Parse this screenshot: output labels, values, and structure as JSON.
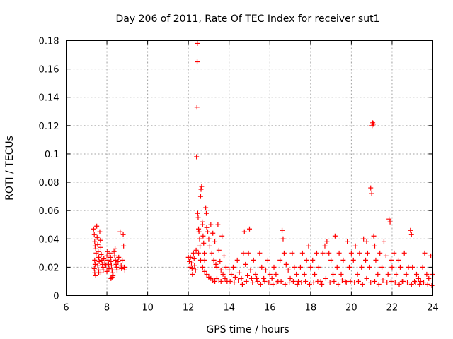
{
  "chart_data": {
    "type": "scatter",
    "title": "Day 206 of 2011, Rate Of TEC Index for receiver sut1",
    "xlabel": "GPS time / hours",
    "ylabel": "ROTI / TECUs",
    "xlim": [
      6,
      24
    ],
    "ylim": [
      0,
      0.18
    ],
    "xticks": [
      6,
      8,
      10,
      12,
      14,
      16,
      18,
      20,
      22,
      24
    ],
    "yticks": [
      0,
      0.02,
      0.04,
      0.06,
      0.08,
      0.1,
      0.12,
      0.14,
      0.16,
      0.18
    ],
    "xtick_labels": [
      "6",
      "8",
      "10",
      "12",
      "14",
      "16",
      "18",
      "20",
      "22",
      "24"
    ],
    "ytick_labels": [
      "0",
      "0.02",
      "0.04",
      "0.06",
      "0.08",
      "0.1",
      "0.12",
      "0.14",
      "0.16",
      "0.18"
    ],
    "grid": true,
    "marker": "+",
    "color": "#ff0000",
    "series": [
      {
        "name": "sut1",
        "points": [
          [
            7.35,
            0.047
          ],
          [
            7.38,
            0.043
          ],
          [
            7.4,
            0.038
          ],
          [
            7.42,
            0.035
          ],
          [
            7.45,
            0.033
          ],
          [
            7.47,
            0.03
          ],
          [
            7.4,
            0.025
          ],
          [
            7.42,
            0.022
          ],
          [
            7.38,
            0.019
          ],
          [
            7.4,
            0.016
          ],
          [
            7.45,
            0.014
          ],
          [
            7.5,
            0.049
          ],
          [
            7.52,
            0.041
          ],
          [
            7.55,
            0.036
          ],
          [
            7.57,
            0.031
          ],
          [
            7.6,
            0.027
          ],
          [
            7.62,
            0.024
          ],
          [
            7.55,
            0.021
          ],
          [
            7.58,
            0.018
          ],
          [
            7.6,
            0.016
          ],
          [
            7.65,
            0.045
          ],
          [
            7.68,
            0.039
          ],
          [
            7.7,
            0.034
          ],
          [
            7.72,
            0.029
          ],
          [
            7.75,
            0.025
          ],
          [
            7.78,
            0.022
          ],
          [
            7.8,
            0.02
          ],
          [
            7.82,
            0.018
          ],
          [
            7.7,
            0.016
          ],
          [
            7.85,
            0.026
          ],
          [
            7.9,
            0.023
          ],
          [
            7.95,
            0.021
          ],
          [
            8.0,
            0.028
          ],
          [
            8.03,
            0.031
          ],
          [
            8.05,
            0.025
          ],
          [
            8.08,
            0.022
          ],
          [
            8.1,
            0.019
          ],
          [
            8.0,
            0.017
          ],
          [
            8.15,
            0.03
          ],
          [
            8.18,
            0.027
          ],
          [
            8.2,
            0.024
          ],
          [
            8.22,
            0.021
          ],
          [
            8.25,
            0.018
          ],
          [
            8.28,
            0.016
          ],
          [
            8.3,
            0.014
          ],
          [
            8.2,
            0.012
          ],
          [
            8.25,
            0.013
          ],
          [
            8.35,
            0.031
          ],
          [
            8.38,
            0.028
          ],
          [
            8.4,
            0.033
          ],
          [
            8.42,
            0.025
          ],
          [
            8.45,
            0.022
          ],
          [
            8.48,
            0.02
          ],
          [
            8.5,
            0.018
          ],
          [
            8.55,
            0.024
          ],
          [
            8.58,
            0.027
          ],
          [
            8.65,
            0.045
          ],
          [
            8.7,
            0.021
          ],
          [
            8.72,
            0.019
          ],
          [
            8.75,
            0.025
          ],
          [
            8.8,
            0.043
          ],
          [
            8.82,
            0.035
          ],
          [
            8.85,
            0.02
          ],
          [
            8.88,
            0.018
          ],
          [
            12.0,
            0.027
          ],
          [
            12.05,
            0.024
          ],
          [
            12.08,
            0.02
          ],
          [
            12.1,
            0.027
          ],
          [
            12.15,
            0.023
          ],
          [
            12.18,
            0.019
          ],
          [
            12.2,
            0.015
          ],
          [
            12.25,
            0.03
          ],
          [
            12.28,
            0.026
          ],
          [
            12.3,
            0.021
          ],
          [
            12.35,
            0.018
          ],
          [
            12.38,
            0.032
          ],
          [
            12.4,
            0.098
          ],
          [
            12.42,
            0.133
          ],
          [
            12.43,
            0.165
          ],
          [
            12.44,
            0.178
          ],
          [
            12.46,
            0.058
          ],
          [
            12.48,
            0.055
          ],
          [
            12.5,
            0.047
          ],
          [
            12.52,
            0.045
          ],
          [
            12.55,
            0.04
          ],
          [
            12.57,
            0.035
          ],
          [
            12.6,
            0.07
          ],
          [
            12.62,
            0.075
          ],
          [
            12.65,
            0.077
          ],
          [
            12.68,
            0.052
          ],
          [
            12.7,
            0.05
          ],
          [
            12.72,
            0.042
          ],
          [
            12.75,
            0.037
          ],
          [
            12.78,
            0.03
          ],
          [
            12.8,
            0.025
          ],
          [
            12.85,
            0.062
          ],
          [
            12.88,
            0.058
          ],
          [
            12.9,
            0.048
          ],
          [
            12.95,
            0.045
          ],
          [
            13.0,
            0.04
          ],
          [
            13.05,
            0.035
          ],
          [
            13.1,
            0.05
          ],
          [
            13.15,
            0.03
          ],
          [
            13.2,
            0.044
          ],
          [
            13.25,
            0.025
          ],
          [
            13.3,
            0.038
          ],
          [
            13.35,
            0.022
          ],
          [
            13.4,
            0.02
          ],
          [
            13.45,
            0.05
          ],
          [
            13.5,
            0.032
          ],
          [
            13.55,
            0.024
          ],
          [
            13.6,
            0.018
          ],
          [
            13.65,
            0.042
          ],
          [
            13.7,
            0.015
          ],
          [
            13.75,
            0.028
          ],
          [
            13.8,
            0.012
          ],
          [
            13.85,
            0.02
          ],
          [
            13.9,
            0.01
          ],
          [
            12.5,
            0.03
          ],
          [
            12.6,
            0.025
          ],
          [
            12.7,
            0.02
          ],
          [
            12.8,
            0.017
          ],
          [
            12.9,
            0.015
          ],
          [
            13.0,
            0.013
          ],
          [
            13.1,
            0.012
          ],
          [
            13.2,
            0.011
          ],
          [
            13.3,
            0.01
          ],
          [
            13.4,
            0.012
          ],
          [
            13.5,
            0.011
          ],
          [
            13.6,
            0.01
          ],
          [
            14.0,
            0.018
          ],
          [
            14.1,
            0.015
          ],
          [
            14.2,
            0.02
          ],
          [
            14.3,
            0.013
          ],
          [
            14.4,
            0.025
          ],
          [
            14.5,
            0.016
          ],
          [
            14.6,
            0.012
          ],
          [
            14.7,
            0.03
          ],
          [
            14.75,
            0.045
          ],
          [
            14.8,
            0.022
          ],
          [
            14.9,
            0.014
          ],
          [
            14.95,
            0.03
          ],
          [
            15.0,
            0.047
          ],
          [
            15.05,
            0.018
          ],
          [
            15.1,
            0.012
          ],
          [
            15.2,
            0.025
          ],
          [
            15.3,
            0.015
          ],
          [
            15.4,
            0.01
          ],
          [
            15.5,
            0.03
          ],
          [
            15.6,
            0.02
          ],
          [
            15.7,
            0.012
          ],
          [
            15.8,
            0.018
          ],
          [
            15.9,
            0.025
          ],
          [
            16.0,
            0.015
          ],
          [
            14.05,
            0.01
          ],
          [
            14.25,
            0.009
          ],
          [
            14.45,
            0.011
          ],
          [
            14.65,
            0.008
          ],
          [
            14.85,
            0.01
          ],
          [
            15.15,
            0.009
          ],
          [
            15.35,
            0.012
          ],
          [
            15.55,
            0.008
          ],
          [
            15.75,
            0.01
          ],
          [
            15.95,
            0.009
          ],
          [
            16.1,
            0.012
          ],
          [
            16.2,
            0.02
          ],
          [
            16.3,
            0.015
          ],
          [
            16.4,
            0.01
          ],
          [
            16.5,
            0.025
          ],
          [
            16.6,
            0.046
          ],
          [
            16.65,
            0.04
          ],
          [
            16.7,
            0.03
          ],
          [
            16.8,
            0.022
          ],
          [
            16.9,
            0.018
          ],
          [
            17.0,
            0.012
          ],
          [
            17.1,
            0.03
          ],
          [
            17.2,
            0.02
          ],
          [
            17.3,
            0.015
          ],
          [
            17.4,
            0.01
          ],
          [
            17.5,
            0.02
          ],
          [
            17.6,
            0.03
          ],
          [
            17.7,
            0.015
          ],
          [
            17.8,
            0.025
          ],
          [
            17.9,
            0.035
          ],
          [
            18.0,
            0.02
          ],
          [
            16.15,
            0.008
          ],
          [
            16.35,
            0.009
          ],
          [
            16.55,
            0.01
          ],
          [
            16.75,
            0.008
          ],
          [
            16.95,
            0.009
          ],
          [
            17.15,
            0.01
          ],
          [
            17.35,
            0.008
          ],
          [
            17.55,
            0.009
          ],
          [
            17.75,
            0.01
          ],
          [
            17.95,
            0.008
          ],
          [
            18.1,
            0.025
          ],
          [
            18.2,
            0.015
          ],
          [
            18.3,
            0.03
          ],
          [
            18.4,
            0.02
          ],
          [
            18.5,
            0.01
          ],
          [
            18.6,
            0.03
          ],
          [
            18.7,
            0.035
          ],
          [
            18.8,
            0.038
          ],
          [
            18.9,
            0.03
          ],
          [
            19.0,
            0.025
          ],
          [
            19.1,
            0.015
          ],
          [
            19.2,
            0.042
          ],
          [
            19.3,
            0.02
          ],
          [
            19.4,
            0.03
          ],
          [
            19.5,
            0.015
          ],
          [
            19.6,
            0.025
          ],
          [
            19.7,
            0.01
          ],
          [
            19.8,
            0.038
          ],
          [
            19.9,
            0.02
          ],
          [
            20.0,
            0.03
          ],
          [
            18.15,
            0.009
          ],
          [
            18.35,
            0.01
          ],
          [
            18.55,
            0.008
          ],
          [
            18.75,
            0.012
          ],
          [
            18.95,
            0.009
          ],
          [
            19.15,
            0.01
          ],
          [
            19.35,
            0.008
          ],
          [
            19.55,
            0.011
          ],
          [
            19.75,
            0.009
          ],
          [
            19.95,
            0.01
          ],
          [
            20.1,
            0.025
          ],
          [
            20.2,
            0.035
          ],
          [
            20.3,
            0.015
          ],
          [
            20.4,
            0.03
          ],
          [
            20.5,
            0.02
          ],
          [
            20.6,
            0.04
          ],
          [
            20.7,
            0.025
          ],
          [
            20.75,
            0.038
          ],
          [
            20.8,
            0.03
          ],
          [
            20.9,
            0.02
          ],
          [
            20.95,
            0.076
          ],
          [
            21.0,
            0.072
          ],
          [
            21.02,
            0.12
          ],
          [
            21.05,
            0.122
          ],
          [
            21.08,
            0.121
          ],
          [
            21.1,
            0.042
          ],
          [
            21.15,
            0.035
          ],
          [
            21.2,
            0.025
          ],
          [
            21.3,
            0.015
          ],
          [
            21.4,
            0.03
          ],
          [
            21.5,
            0.02
          ],
          [
            21.6,
            0.038
          ],
          [
            21.7,
            0.028
          ],
          [
            21.8,
            0.015
          ],
          [
            21.85,
            0.054
          ],
          [
            21.9,
            0.052
          ],
          [
            21.95,
            0.025
          ],
          [
            22.0,
            0.02
          ],
          [
            20.15,
            0.009
          ],
          [
            20.35,
            0.01
          ],
          [
            20.55,
            0.008
          ],
          [
            20.75,
            0.012
          ],
          [
            20.95,
            0.009
          ],
          [
            21.15,
            0.01
          ],
          [
            21.35,
            0.008
          ],
          [
            21.55,
            0.011
          ],
          [
            21.75,
            0.009
          ],
          [
            21.95,
            0.01
          ],
          [
            22.1,
            0.03
          ],
          [
            22.2,
            0.015
          ],
          [
            22.3,
            0.025
          ],
          [
            22.4,
            0.02
          ],
          [
            22.5,
            0.01
          ],
          [
            22.6,
            0.03
          ],
          [
            22.7,
            0.015
          ],
          [
            22.8,
            0.02
          ],
          [
            22.9,
            0.046
          ],
          [
            22.95,
            0.043
          ],
          [
            23.0,
            0.02
          ],
          [
            23.1,
            0.01
          ],
          [
            23.2,
            0.015
          ],
          [
            23.3,
            0.012
          ],
          [
            23.4,
            0.01
          ],
          [
            23.5,
            0.02
          ],
          [
            23.6,
            0.03
          ],
          [
            23.7,
            0.015
          ],
          [
            23.8,
            0.012
          ],
          [
            23.9,
            0.028
          ],
          [
            24.0,
            0.015
          ],
          [
            22.15,
            0.009
          ],
          [
            22.35,
            0.008
          ],
          [
            22.55,
            0.01
          ],
          [
            22.75,
            0.009
          ],
          [
            22.95,
            0.008
          ],
          [
            23.15,
            0.009
          ],
          [
            23.35,
            0.008
          ],
          [
            23.55,
            0.009
          ],
          [
            23.75,
            0.008
          ],
          [
            23.95,
            0.007
          ]
        ]
      }
    ]
  }
}
